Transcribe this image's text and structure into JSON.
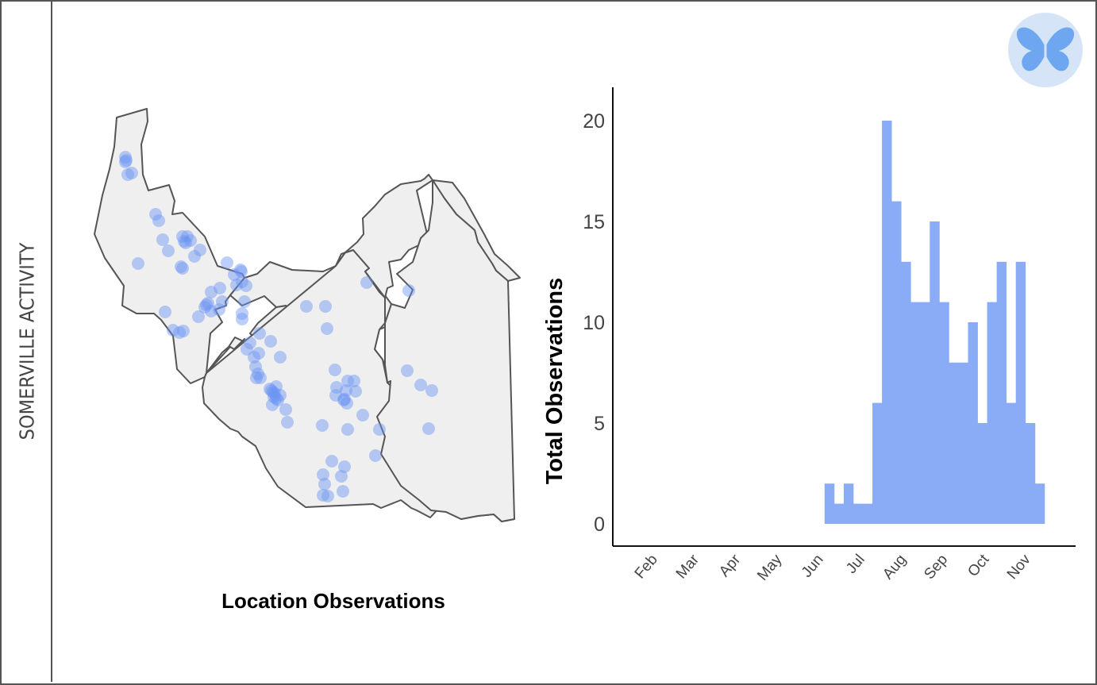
{
  "sidebar": {
    "title": "SOMERVILLE ACTIVITY"
  },
  "logo": {
    "icon": "butterfly-icon",
    "bg_color": "#d6e4f7",
    "fg_color": "#6ea6f0"
  },
  "map": {
    "caption": "Location Observations",
    "fill_color": "#efefef",
    "stroke_color": "#555555",
    "point_color": "#6b95f5",
    "point_count": 96
  },
  "chart_data": {
    "type": "bar",
    "title": "",
    "xlabel": "",
    "ylabel": "Total Observations",
    "ylim": [
      0,
      21
    ],
    "yticks": [
      0,
      5,
      10,
      15,
      20
    ],
    "xticks": [
      "Feb",
      "Mar",
      "Apr",
      "May",
      "Jun",
      "Jul",
      "Aug",
      "Sep",
      "Oct",
      "Nov"
    ],
    "bar_color": "#8aacf7",
    "weeks_start_label": "Jun",
    "values": [
      2,
      1,
      2,
      1,
      1,
      6,
      20,
      16,
      13,
      11,
      11,
      15,
      11,
      8,
      8,
      10,
      5,
      11,
      13,
      6,
      13,
      5,
      2
    ],
    "grid": false,
    "legend": "none"
  }
}
